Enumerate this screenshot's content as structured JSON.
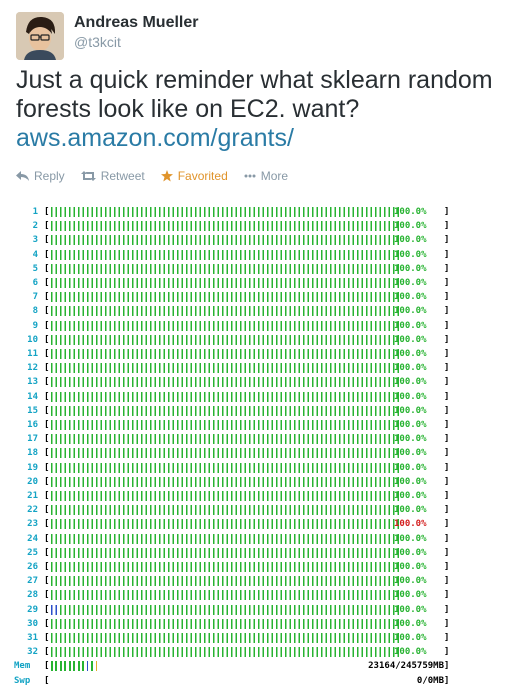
{
  "tweet": {
    "author_name": "Andreas Mueller",
    "author_handle": "@t3kcit",
    "text": "Just a quick reminder what sklearn random forests look like on EC2. want?",
    "link": "aws.amazon.com/grants/"
  },
  "actions": {
    "reply": "Reply",
    "retweet": "Retweet",
    "favorited": "Favorited",
    "more": "More"
  },
  "cpu_rows": [
    {
      "id": "1",
      "pct": "100.0%"
    },
    {
      "id": "2",
      "pct": "100.0%"
    },
    {
      "id": "3",
      "pct": "100.0%"
    },
    {
      "id": "4",
      "pct": "100.0%"
    },
    {
      "id": "5",
      "pct": "100.0%"
    },
    {
      "id": "6",
      "pct": "100.0%"
    },
    {
      "id": "7",
      "pct": "100.0%"
    },
    {
      "id": "8",
      "pct": "100.0%"
    },
    {
      "id": "9",
      "pct": "100.0%"
    },
    {
      "id": "10",
      "pct": "100.0%"
    },
    {
      "id": "11",
      "pct": "100.0%"
    },
    {
      "id": "12",
      "pct": "100.0%"
    },
    {
      "id": "13",
      "pct": "100.0%"
    },
    {
      "id": "14",
      "pct": "100.0%"
    },
    {
      "id": "15",
      "pct": "100.0%"
    },
    {
      "id": "16",
      "pct": "100.0%"
    },
    {
      "id": "17",
      "pct": "100.0%"
    },
    {
      "id": "18",
      "pct": "100.0%"
    },
    {
      "id": "19",
      "pct": "100.0%"
    },
    {
      "id": "20",
      "pct": "100.0%"
    },
    {
      "id": "21",
      "pct": "100.0%"
    },
    {
      "id": "22",
      "pct": "100.0%"
    },
    {
      "id": "23",
      "pct": "100.0%",
      "alert": true
    },
    {
      "id": "24",
      "pct": "100.0%"
    },
    {
      "id": "25",
      "pct": "100.0%"
    },
    {
      "id": "26",
      "pct": "100.0%"
    },
    {
      "id": "27",
      "pct": "100.0%"
    },
    {
      "id": "28",
      "pct": "100.0%"
    },
    {
      "id": "29",
      "pct": "100.0%"
    },
    {
      "id": "30",
      "pct": "100.0%"
    },
    {
      "id": "31",
      "pct": "100.0%"
    },
    {
      "id": "32",
      "pct": "100.0%"
    }
  ],
  "mem": {
    "label": "Mem",
    "value": "23164/245759MB"
  },
  "swp": {
    "label": "Swp",
    "value": "0/0MB"
  }
}
